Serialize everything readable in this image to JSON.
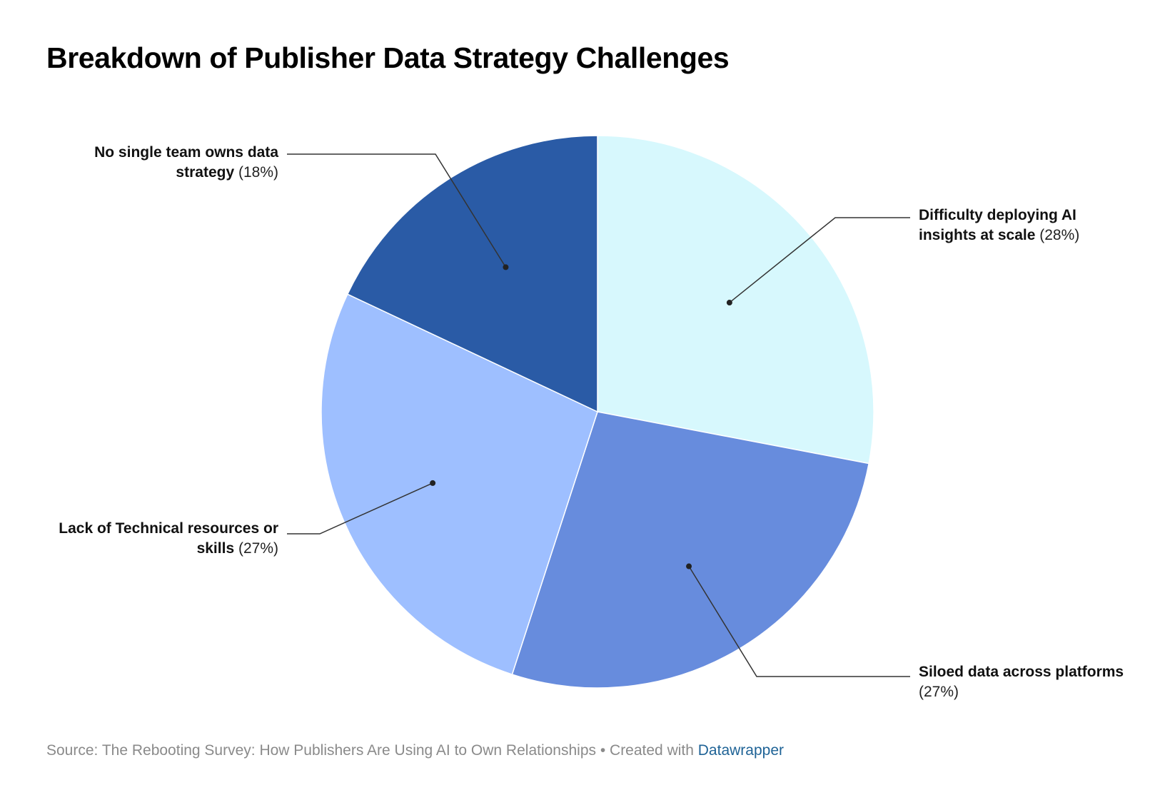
{
  "title": "Breakdown of Publisher Data Strategy Challenges",
  "footer": {
    "source_text": "Source: The Rebooting Survey: How Publishers Are Using AI to Own Relationships • Created with ",
    "brand": "Datawrapper"
  },
  "chart_data": {
    "type": "pie",
    "title": "Breakdown of Publisher Data Strategy Challenges",
    "slices": [
      {
        "label": "Difficulty deploying AI insights at scale",
        "value": 28,
        "value_label": "(28%)",
        "color": "#d7f8fd"
      },
      {
        "label": "Siloed data across platforms",
        "value": 27,
        "value_label": "(27%)",
        "color": "#678cdd"
      },
      {
        "label": "Lack of Technical resources or skills",
        "value": 27,
        "value_label": "(27%)",
        "color": "#9ebfff"
      },
      {
        "label": "No single team owns data strategy",
        "value": 18,
        "value_label": "(18%)",
        "color": "#2a5ba6"
      }
    ],
    "start_angle": "12 o'clock, clockwise",
    "legend": "direct labels with leader lines"
  }
}
